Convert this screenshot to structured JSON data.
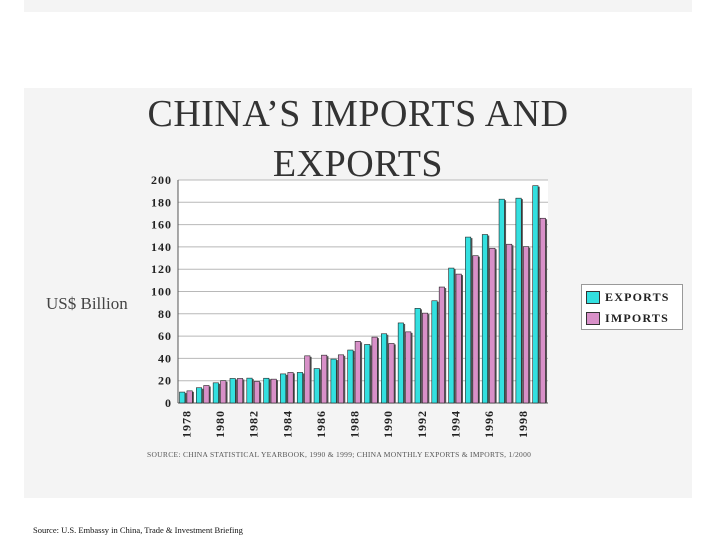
{
  "slide": {
    "title_line1": "CHINA’S IMPORTS AND",
    "title_line2": "EXPORTS",
    "ylabel": "US$ Billion",
    "chart_source": "SOURCE: CHINA STATISTICAL YEARBOOK, 1990 & 1999; CHINA MONTHLY EXPORTS & IMPORTS, 1/2000",
    "footer_source": "Source: U.S. Embassy in China, Trade & Investment Briefing"
  },
  "colors": {
    "exports": "#33e0e0",
    "imports": "#d890c8",
    "bar_edge": "#222222",
    "grid": "#b8b8b8"
  },
  "chart_data": {
    "type": "bar",
    "title": "CHINA’S IMPORTS AND EXPORTS",
    "ylabel": "US$ Billion",
    "ylim": [
      0,
      200
    ],
    "yticks": [
      0,
      20,
      40,
      60,
      80,
      100,
      120,
      140,
      160,
      180,
      200
    ],
    "grid": true,
    "legend_position": "right",
    "categories": [
      "1978",
      "1979",
      "1980",
      "1981",
      "1982",
      "1983",
      "1984",
      "1985",
      "1986",
      "1987",
      "1988",
      "1989",
      "1990",
      "1991",
      "1992",
      "1993",
      "1994",
      "1995",
      "1996",
      "1997",
      "1998",
      "1999"
    ],
    "xtick_labels": [
      "1978",
      "1980",
      "1982",
      "1984",
      "1986",
      "1988",
      "1990",
      "1992",
      "1994",
      "1996",
      "1998"
    ],
    "series": [
      {
        "name": "EXPORTS",
        "values": [
          9.8,
          13.7,
          18.1,
          22.0,
          22.3,
          22.2,
          26.1,
          27.4,
          30.9,
          39.4,
          47.5,
          52.5,
          62.1,
          71.8,
          84.9,
          91.7,
          121.0,
          148.8,
          151.1,
          182.8,
          183.7,
          194.9
        ]
      },
      {
        "name": "IMPORTS",
        "values": [
          10.9,
          15.7,
          20.0,
          22.0,
          19.3,
          21.4,
          27.4,
          42.3,
          42.9,
          43.2,
          55.3,
          59.1,
          53.4,
          63.8,
          80.6,
          104.0,
          115.6,
          132.1,
          138.8,
          142.4,
          140.2,
          165.7
        ]
      }
    ]
  }
}
